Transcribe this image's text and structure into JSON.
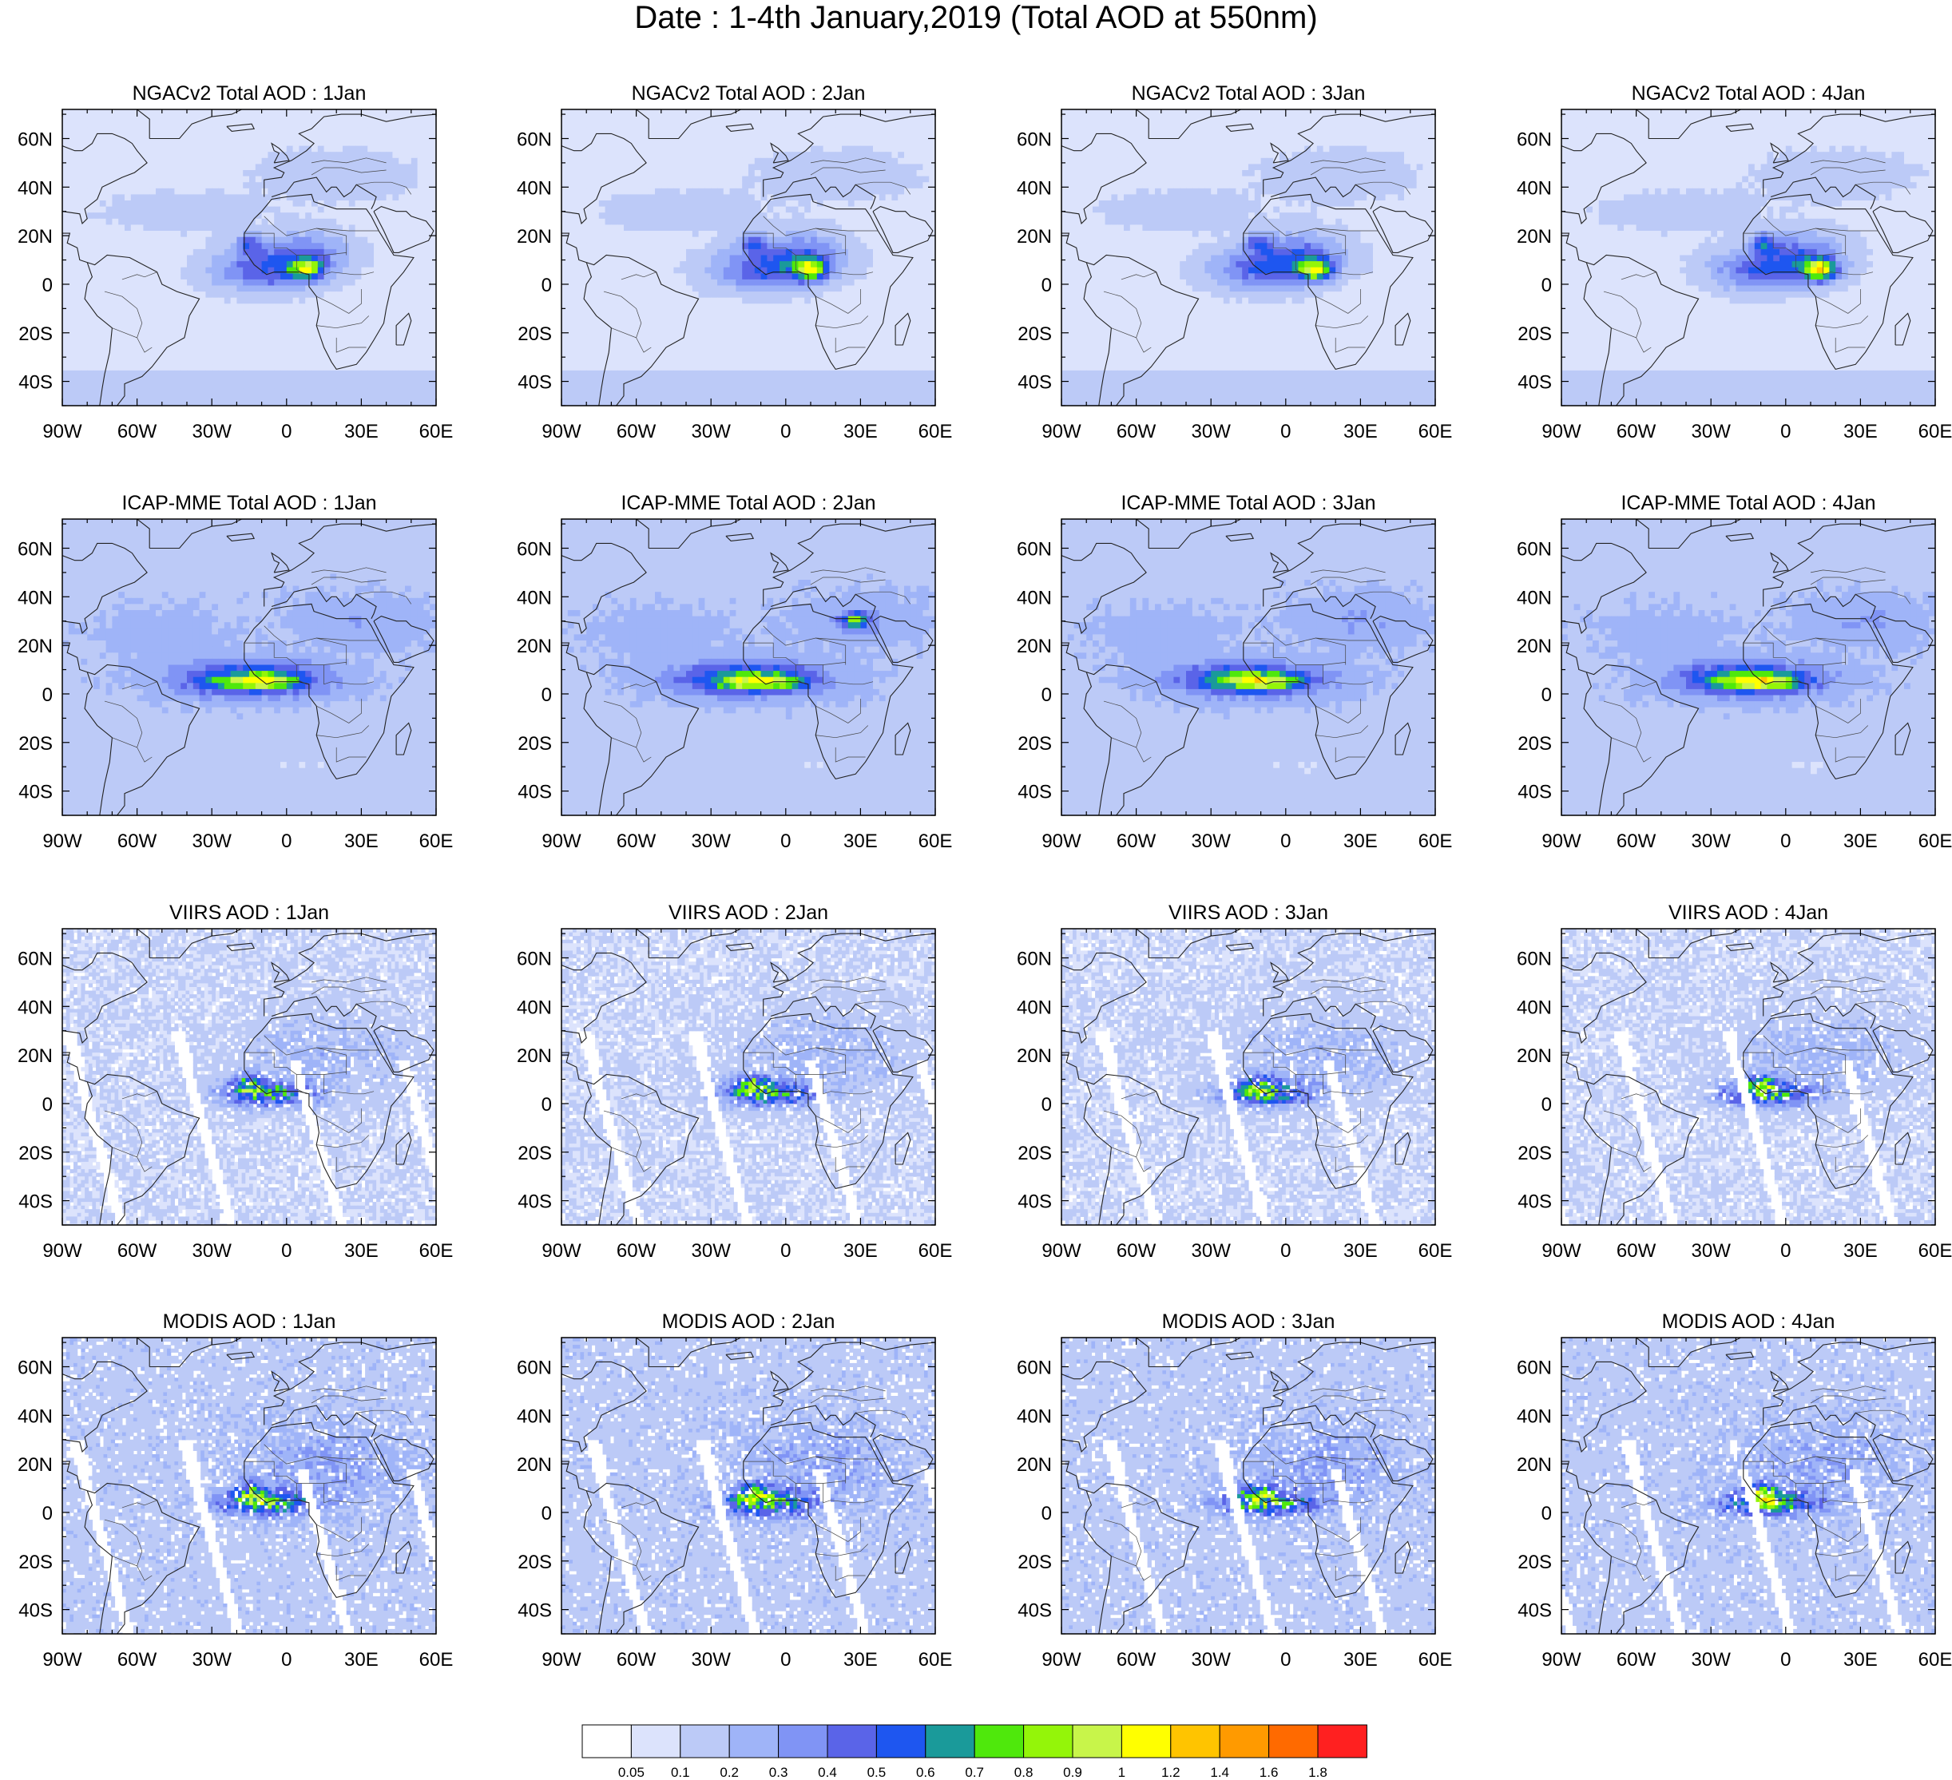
{
  "title": "Date : 1-4th January,2019 (Total AOD at 550nm)",
  "lon_tick_labels": [
    "90W",
    "60W",
    "30W",
    "0",
    "30E",
    "60E"
  ],
  "lat_tick_labels": [
    "60N",
    "40N",
    "20N",
    "0",
    "20S",
    "40S"
  ],
  "panels": [
    {
      "title": "NGACv2 Total AOD : 1Jan",
      "dataset": "NGACv2",
      "day": "1Jan"
    },
    {
      "title": "NGACv2 Total AOD : 2Jan",
      "dataset": "NGACv2",
      "day": "2Jan"
    },
    {
      "title": "NGACv2 Total AOD : 3Jan",
      "dataset": "NGACv2",
      "day": "3Jan"
    },
    {
      "title": "NGACv2 Total AOD : 4Jan",
      "dataset": "NGACv2",
      "day": "4Jan"
    },
    {
      "title": "ICAP-MME Total AOD : 1Jan",
      "dataset": "ICAP-MME",
      "day": "1Jan"
    },
    {
      "title": "ICAP-MME Total AOD : 2Jan",
      "dataset": "ICAP-MME",
      "day": "2Jan"
    },
    {
      "title": "ICAP-MME Total AOD : 3Jan",
      "dataset": "ICAP-MME",
      "day": "3Jan"
    },
    {
      "title": "ICAP-MME Total AOD : 4Jan",
      "dataset": "ICAP-MME",
      "day": "4Jan"
    },
    {
      "title": "VIIRS AOD : 1Jan",
      "dataset": "VIIRS",
      "day": "1Jan"
    },
    {
      "title": "VIIRS AOD : 2Jan",
      "dataset": "VIIRS",
      "day": "2Jan"
    },
    {
      "title": "VIIRS AOD : 3Jan",
      "dataset": "VIIRS",
      "day": "3Jan"
    },
    {
      "title": "VIIRS AOD : 4Jan",
      "dataset": "VIIRS",
      "day": "4Jan"
    },
    {
      "title": "MODIS AOD : 1Jan",
      "dataset": "MODIS",
      "day": "1Jan"
    },
    {
      "title": "MODIS AOD : 2Jan",
      "dataset": "MODIS",
      "day": "2Jan"
    },
    {
      "title": "MODIS AOD : 3Jan",
      "dataset": "MODIS",
      "day": "3Jan"
    },
    {
      "title": "MODIS AOD : 4Jan",
      "dataset": "MODIS",
      "day": "4Jan"
    }
  ],
  "colorbar": {
    "colors": [
      "#ffffff",
      "#dce3fc",
      "#bccaf7",
      "#9fb4f8",
      "#8094f5",
      "#5a64e8",
      "#1e56f0",
      "#1a9a9a",
      "#4fe80c",
      "#94f509",
      "#c8f54a",
      "#ffff00",
      "#ffc400",
      "#ff9a00",
      "#ff6a00",
      "#ff2020"
    ],
    "labels": [
      "0.05",
      "0.1",
      "0.2",
      "0.3",
      "0.4",
      "0.5",
      "0.6",
      "0.7",
      "0.8",
      "0.9",
      "1",
      "1.2",
      "1.4",
      "1.6",
      "1.8"
    ]
  }
}
